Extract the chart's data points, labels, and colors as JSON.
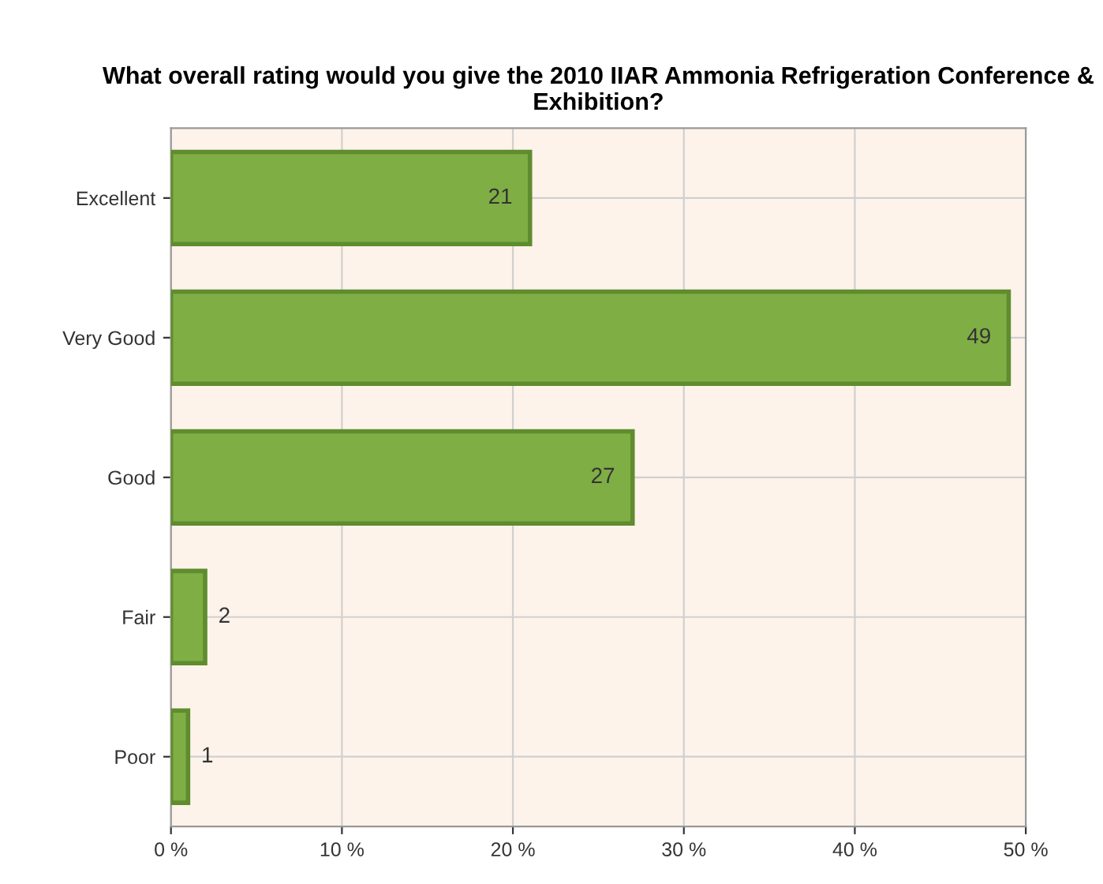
{
  "chart_data": {
    "type": "bar",
    "orientation": "horizontal",
    "title": "What overall rating would you give the 2010 IIAR Ammonia Refrigeration Conference & Exhibition?",
    "categories": [
      "Excellent",
      "Very Good",
      "Good",
      "Fair",
      "Poor"
    ],
    "values": [
      21,
      49,
      27,
      2,
      1
    ],
    "color": "#7fae45",
    "data_labels": true,
    "xlim": [
      0,
      50
    ],
    "xticks": [
      {
        "value": 0,
        "label": "0 %"
      },
      {
        "value": 10,
        "label": "10 %"
      },
      {
        "value": 20,
        "label": "20 %"
      },
      {
        "value": 30,
        "label": "30 %"
      },
      {
        "value": 40,
        "label": "40 %"
      },
      {
        "value": 50,
        "label": "50 %"
      }
    ],
    "grid": true
  }
}
